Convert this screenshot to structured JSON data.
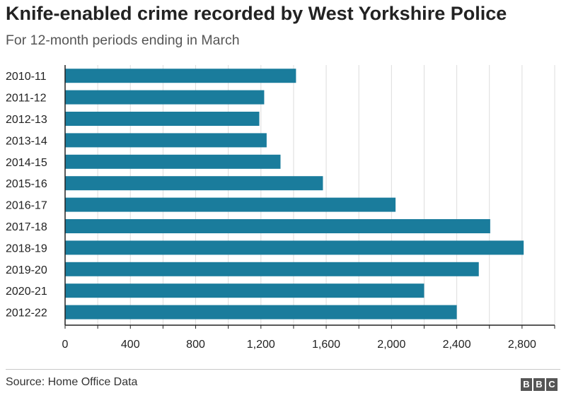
{
  "title": "Knife-enabled crime recorded by West Yorkshire Police",
  "subtitle": "For 12-month periods ending in March",
  "source": "Source: Home Office Data",
  "logo": {
    "text": "BBC",
    "letters": [
      "B",
      "B",
      "C"
    ],
    "color": "#555555"
  },
  "colors": {
    "bar": "#1a7c9c",
    "grid": "#dcdcdc",
    "axis": "#222222"
  },
  "chart_data": {
    "type": "bar",
    "orientation": "horizontal",
    "categories": [
      "2010-11",
      "2011-12",
      "2012-13",
      "2013-14",
      "2014-15",
      "2015-16",
      "2016-17",
      "2017-18",
      "2018-19",
      "2019-20",
      "2020-21",
      "2012-22"
    ],
    "values": [
      1415,
      1220,
      1190,
      1235,
      1320,
      1580,
      2025,
      2605,
      2810,
      2535,
      2200,
      2400
    ],
    "title": "Knife-enabled crime recorded by West Yorkshire Police",
    "subtitle": "For 12-month periods ending in March",
    "xlim": [
      0,
      3000
    ],
    "xticks": [
      0,
      400,
      800,
      1200,
      1600,
      2000,
      2400,
      2800
    ],
    "xtick_labels": [
      "0",
      "400",
      "800",
      "1,200",
      "1,600",
      "2,000",
      "2,400",
      "2,800"
    ],
    "grid": true,
    "legend": "none"
  }
}
